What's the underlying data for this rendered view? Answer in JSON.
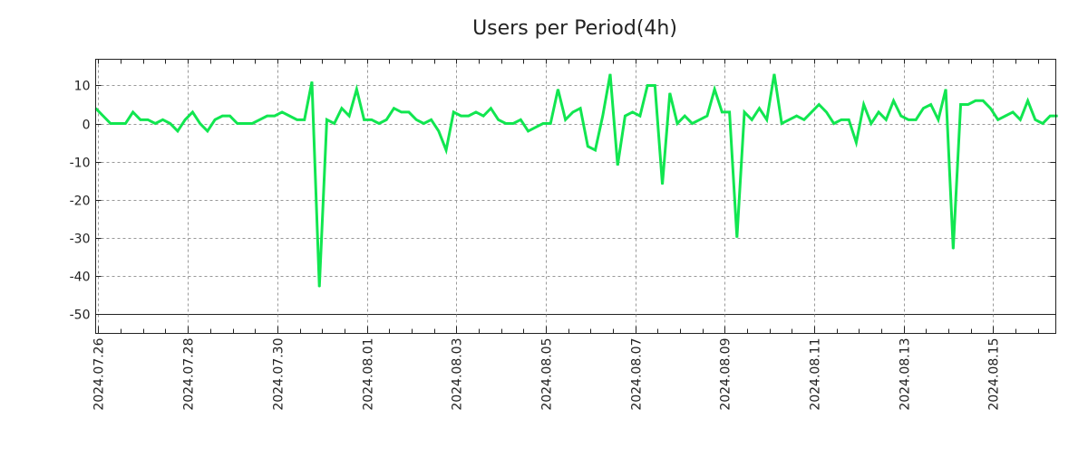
{
  "chart_data": {
    "type": "line",
    "title": "Users per Period(4h)",
    "xlabel": "",
    "ylabel": "",
    "series": [
      {
        "name": "Users per Period(4h)",
        "color": "#11e650",
        "x_start_days_from_2024_07_26": -0.06,
        "step_hours": 4,
        "values": [
          4,
          2,
          0,
          0,
          0,
          3,
          1,
          1,
          0,
          1,
          0,
          -2,
          1,
          3,
          0,
          -2,
          1,
          2,
          2,
          0,
          0,
          0,
          1,
          2,
          2,
          3,
          2,
          1,
          1,
          11,
          -43,
          1,
          0,
          4,
          2,
          9,
          1,
          1,
          0,
          1,
          4,
          3,
          3,
          1,
          0,
          1,
          -2,
          -7,
          3,
          2,
          2,
          3,
          2,
          4,
          1,
          0,
          0,
          1,
          -2,
          -1,
          0,
          0,
          9,
          1,
          3,
          4,
          -6,
          -7,
          2,
          13,
          -11,
          2,
          3,
          2,
          10,
          10,
          -16,
          8,
          0,
          2,
          0,
          1,
          2,
          9,
          3,
          3,
          -30,
          3,
          1,
          4,
          1,
          13,
          0,
          1,
          2,
          1,
          3,
          5,
          3,
          0,
          1,
          1,
          -5,
          5,
          0,
          3,
          1,
          6,
          2,
          1,
          1,
          4,
          5,
          1,
          9,
          -33,
          5,
          5,
          6,
          6,
          4,
          1,
          2,
          3,
          1,
          6,
          1,
          0,
          2,
          2
        ]
      }
    ],
    "x_tick_labels": [
      "2024.07.26",
      "2024.07.28",
      "2024.07.30",
      "2024.08.01",
      "2024.08.03",
      "2024.08.05",
      "2024.08.07",
      "2024.08.09",
      "2024.08.11",
      "2024.08.13",
      "2024.08.15"
    ],
    "x_tick_days": [
      0,
      2,
      4,
      6,
      8,
      10,
      12,
      14,
      16,
      18,
      20
    ],
    "y_ticks": [
      10,
      0,
      -10,
      -20,
      -30,
      -40,
      -50
    ],
    "y_tick_labels": [
      "10",
      "0",
      "-10",
      "-20",
      "-30",
      "-40",
      "-50"
    ],
    "xlim_days": [
      -0.06,
      21.4
    ],
    "ylim": [
      -55.2,
      16.9
    ],
    "grid": true,
    "legend": "none"
  }
}
